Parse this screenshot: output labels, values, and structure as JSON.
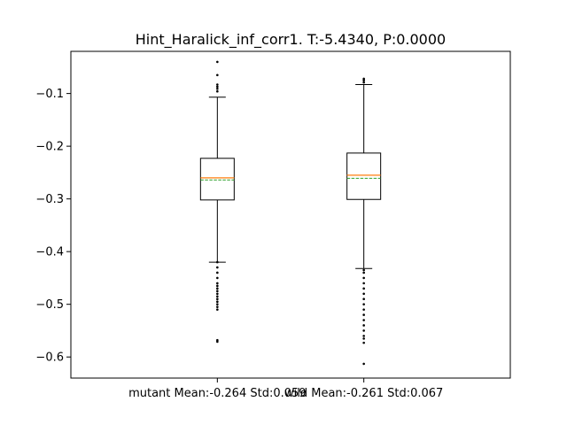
{
  "chart_data": {
    "type": "box",
    "title": "Hint_Haralick_inf_corr1. T:-5.4340, P:0.0000",
    "xlabel": "",
    "ylabel": "",
    "ylim": [
      -0.64,
      -0.02
    ],
    "yticks": [
      -0.1,
      -0.2,
      -0.3,
      -0.4,
      -0.5,
      -0.6
    ],
    "ytick_labels": [
      "−0.1",
      "−0.2",
      "−0.3",
      "−0.4",
      "−0.5",
      "−0.6"
    ],
    "grid": false,
    "colors": {
      "box": "#000000",
      "median": "#ff7f0e",
      "mean": "#2ca02c",
      "axes": "#000000"
    },
    "series": [
      {
        "category": "mutant Mean:-0.264 Std:0.059",
        "whisker_high": -0.107,
        "q3": -0.223,
        "median": -0.26,
        "mean": -0.264,
        "q1": -0.302,
        "whisker_low": -0.42,
        "outliers": [
          -0.04,
          -0.065,
          -0.083,
          -0.087,
          -0.091,
          -0.096,
          -0.42,
          -0.43,
          -0.44,
          -0.45,
          -0.46,
          -0.465,
          -0.47,
          -0.475,
          -0.48,
          -0.485,
          -0.49,
          -0.495,
          -0.5,
          -0.505,
          -0.51,
          -0.568,
          -0.571
        ]
      },
      {
        "category": "wild Mean:-0.261 Std:0.067",
        "whisker_high": -0.083,
        "q3": -0.213,
        "median": -0.255,
        "mean": -0.261,
        "q1": -0.301,
        "whisker_low": -0.432,
        "outliers": [
          -0.072,
          -0.075,
          -0.079,
          -0.435,
          -0.44,
          -0.45,
          -0.46,
          -0.47,
          -0.48,
          -0.49,
          -0.5,
          -0.51,
          -0.52,
          -0.53,
          -0.54,
          -0.55,
          -0.56,
          -0.565,
          -0.573,
          -0.613
        ]
      }
    ]
  }
}
